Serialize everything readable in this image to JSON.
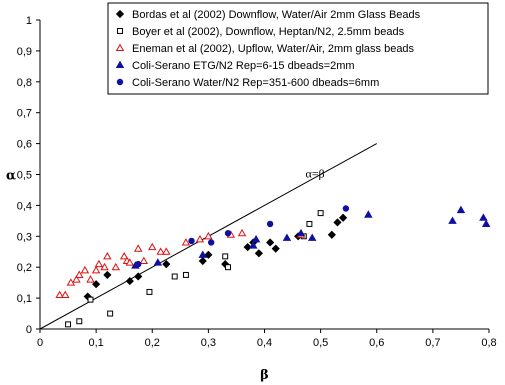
{
  "chart_data": {
    "type": "scatter",
    "xlabel": "β",
    "ylabel": "α",
    "xlim": [
      0,
      0.8
    ],
    "ylim": [
      0,
      1
    ],
    "xticks": [
      "0",
      "0,1",
      "0,2",
      "0,3",
      "0,4",
      "0,5",
      "0,6",
      "0,7",
      "0,8"
    ],
    "yticks": [
      "0",
      "0,1",
      "0,2",
      "0,3",
      "0,4",
      "0,5",
      "0,6",
      "0,7",
      "0,8",
      "0,9",
      "1"
    ],
    "grid": false,
    "legend_position": "top-right",
    "line": {
      "label": "α=β",
      "x": [
        0,
        0.6
      ],
      "y": [
        0,
        0.6
      ]
    },
    "series": [
      {
        "name": "Bordas et al (2002) Downflow, Water/Air 2mm Glass Beads",
        "marker": "diamond",
        "color": "#000000",
        "filled": true,
        "x": [
          0.085,
          0.1,
          0.12,
          0.16,
          0.175,
          0.225,
          0.29,
          0.3,
          0.33,
          0.37,
          0.38,
          0.39,
          0.41,
          0.42,
          0.46,
          0.52,
          0.53,
          0.54
        ],
        "y": [
          0.105,
          0.145,
          0.175,
          0.155,
          0.17,
          0.21,
          0.22,
          0.24,
          0.21,
          0.265,
          0.28,
          0.245,
          0.28,
          0.26,
          0.3,
          0.305,
          0.345,
          0.36
        ]
      },
      {
        "name": "Boyer et al (2002), Downflow, Heptan/N2, 2.5mm beads",
        "marker": "square",
        "color": "#000000",
        "filled": false,
        "x": [
          0.05,
          0.07,
          0.09,
          0.125,
          0.195,
          0.24,
          0.26,
          0.33,
          0.335,
          0.47,
          0.48,
          0.5
        ],
        "y": [
          0.015,
          0.025,
          0.095,
          0.05,
          0.12,
          0.17,
          0.175,
          0.235,
          0.2,
          0.3,
          0.34,
          0.375
        ]
      },
      {
        "name": "Eneman et al (2002), Upflow, Water/Air, 2mm glass beads",
        "marker": "triangle",
        "color": "#e01010",
        "filled": false,
        "x": [
          0.035,
          0.045,
          0.055,
          0.065,
          0.07,
          0.08,
          0.09,
          0.1,
          0.105,
          0.115,
          0.12,
          0.135,
          0.15,
          0.155,
          0.16,
          0.175,
          0.185,
          0.2,
          0.215,
          0.225,
          0.26,
          0.285,
          0.3,
          0.34,
          0.36,
          0.465
        ],
        "y": [
          0.11,
          0.11,
          0.15,
          0.16,
          0.175,
          0.19,
          0.16,
          0.19,
          0.21,
          0.2,
          0.235,
          0.2,
          0.235,
          0.22,
          0.215,
          0.26,
          0.22,
          0.265,
          0.25,
          0.25,
          0.28,
          0.29,
          0.3,
          0.305,
          0.31,
          0.305
        ]
      },
      {
        "name": "Coli-Serano ETG/N2 Rep=6-15 dbeads=2mm",
        "marker": "triangle",
        "color": "#1010a0",
        "filled": true,
        "x": [
          0.17,
          0.21,
          0.29,
          0.38,
          0.385,
          0.44,
          0.465,
          0.485,
          0.585,
          0.735,
          0.75,
          0.79,
          0.795
        ],
        "y": [
          0.205,
          0.215,
          0.24,
          0.27,
          0.29,
          0.295,
          0.31,
          0.295,
          0.37,
          0.35,
          0.385,
          0.36,
          0.34
        ]
      },
      {
        "name": "Coli-Serano Water/N2 Rep=351-600 dbeads=6mm",
        "marker": "circle",
        "color": "#1010a0",
        "filled": true,
        "x": [
          0.175,
          0.27,
          0.305,
          0.335,
          0.41,
          0.545
        ],
        "y": [
          0.21,
          0.285,
          0.28,
          0.31,
          0.34,
          0.39
        ]
      }
    ]
  }
}
